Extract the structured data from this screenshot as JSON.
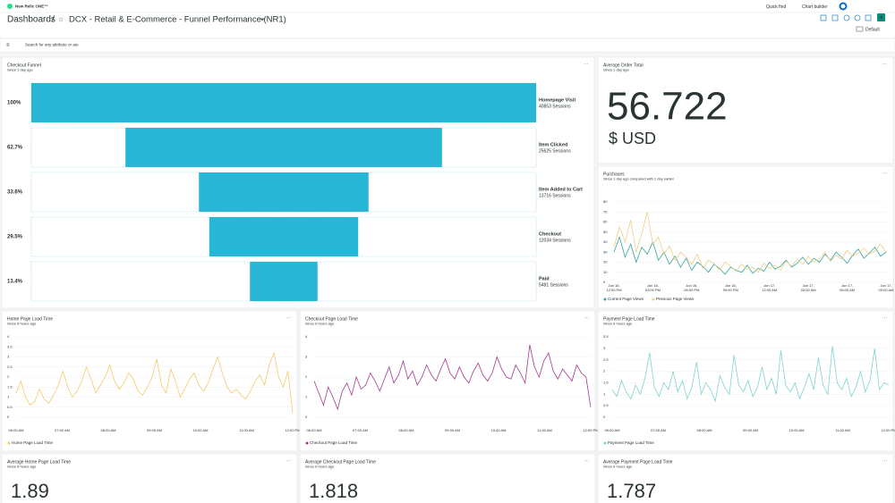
{
  "header": {
    "logo": "New Relic ONE™",
    "quick_find": "Quick find",
    "chart_builder": "Chart builder",
    "breadcrumb": "Dashboards",
    "separator": "/",
    "title": "DCX - Retail & E-Commerce - Funnel Performance (NR1)",
    "view": "Default"
  },
  "filter": {
    "placeholder": "Search for any attribute or ato"
  },
  "funnel": {
    "title": "Checkout Funnel",
    "subtitle": "Since 1 day ago",
    "color": "#27b6d6",
    "steps": [
      {
        "percent": 100,
        "percent_label": "100%",
        "name": "Homepage Visit",
        "sessions": "40853 Sessions"
      },
      {
        "percent": 62.7,
        "percent_label": "62.7%",
        "name": "Item Clicked",
        "sessions": "25625 Sessions"
      },
      {
        "percent": 33.6,
        "percent_label": "33.6%",
        "name": "Item Added to Cart",
        "sessions": "13716 Sessions"
      },
      {
        "percent": 29.5,
        "percent_label": "29.5%",
        "name": "Checkout",
        "sessions": "12034 Sessions"
      },
      {
        "percent": 13.4,
        "percent_label": "13.4%",
        "name": "Paid",
        "sessions": "5481 Sessions"
      }
    ]
  },
  "billboards": [
    {
      "title": "Average Order Total",
      "subtitle": "Since 1 day ago",
      "value": 56.722,
      "unit": "$ USD"
    },
    {
      "title": "Average Home Page Load Time",
      "subtitle": "Since 6 hours ago",
      "value": 1.89
    },
    {
      "title": "Average Checkout Page Load Time",
      "subtitle": "Since 6 hours ago",
      "value": 1.818
    },
    {
      "title": "Average Payment Page Load Time",
      "subtitle": "Since 6 hours ago",
      "value": 1.787
    }
  ],
  "chart_data": [
    {
      "type": "line",
      "title": "Purchases",
      "subtitle": "Since 1 day ago compared with 1 day earlier",
      "ylim": [
        0,
        80
      ],
      "yticks": [
        0,
        10,
        20,
        30,
        40,
        50,
        60,
        70,
        80
      ],
      "xtick_labels": [
        {
          "date": "Jun 16,",
          "time": "12:00 PM"
        },
        {
          "date": "Jun 16,",
          "time": "03:00 PM"
        },
        {
          "date": "Jun 16,",
          "time": "06:00 PM"
        },
        {
          "date": "Jun 16,",
          "time": "09:00 PM"
        },
        {
          "date": "Jun 17,",
          "time": "12:00 AM"
        },
        {
          "date": "Jun 17,",
          "time": "03:00 AM"
        },
        {
          "date": "Jun 17,",
          "time": "06:00 AM"
        },
        {
          "date": "Jun 17,",
          "time": "09:00 AM"
        }
      ],
      "series": [
        {
          "name": "Current Page Views",
          "color": "#31a4a0",
          "values": [
            30,
            45,
            25,
            38,
            20,
            35,
            28,
            40,
            22,
            30,
            18,
            26,
            15,
            24,
            12,
            20,
            16,
            10,
            18,
            14,
            8,
            15,
            12,
            10,
            17,
            9,
            14,
            11,
            20,
            13,
            16,
            22,
            15,
            19,
            25,
            18,
            24,
            20,
            28,
            22,
            30,
            25,
            19,
            27,
            33,
            24,
            29,
            35,
            26,
            30
          ]
        },
        {
          "name": "Previous Page Views",
          "color": "#f0cf86",
          "values": [
            35,
            55,
            40,
            62,
            30,
            48,
            70,
            38,
            45,
            28,
            36,
            22,
            30,
            25,
            18,
            28,
            14,
            22,
            19,
            12,
            20,
            16,
            11,
            18,
            13,
            15,
            10,
            19,
            14,
            17,
            12,
            21,
            16,
            23,
            18,
            26,
            20,
            24,
            30,
            21,
            27,
            23,
            32,
            26,
            29,
            34,
            28,
            31,
            38,
            30
          ]
        }
      ]
    },
    {
      "type": "line",
      "title": "Home Page Load Time",
      "subtitle": "Since 6 hours ago",
      "ylim": [
        0,
        4
      ],
      "yticks": [
        0,
        0.5,
        1,
        1.5,
        2,
        2.5,
        3,
        3.5,
        4
      ],
      "xtick_labels": [
        "06:00 AM",
        "07:00 AM",
        "08:00 AM",
        "09:00 AM",
        "10:00 AM",
        "11:00 AM",
        "12:00 PM"
      ],
      "series": [
        {
          "name": "Home Page Load Time",
          "color": "#f5c969",
          "values": [
            1.2,
            1.8,
            1.0,
            0.6,
            0.8,
            1.4,
            0.9,
            0.7,
            1.1,
            1.6,
            2.3,
            1.5,
            1.0,
            1.3,
            1.8,
            2.5,
            1.9,
            1.2,
            1.6,
            2.0,
            2.6,
            1.8,
            1.4,
            1.7,
            2.2,
            1.9,
            1.3,
            1.1,
            1.5,
            2.0,
            2.9,
            1.6,
            1.2,
            2.4,
            1.8,
            1.0,
            1.4,
            1.9,
            2.2,
            1.6,
            1.3,
            1.7,
            2.4,
            3.0,
            2.2,
            1.5,
            1.2,
            1.4,
            1.1,
            0.9,
            1.3,
            1.8,
            2.1,
            1.6,
            2.6,
            3.2,
            2.0,
            1.5,
            2.3,
            0.2
          ]
        }
      ]
    },
    {
      "type": "line",
      "title": "Checkout Page Load Time",
      "subtitle": "Since 6 hours ago",
      "ylim": [
        0,
        4
      ],
      "yticks": [
        0,
        1,
        2,
        3,
        4
      ],
      "xtick_labels": [
        "06:00 AM",
        "07:00 AM",
        "08:00 AM",
        "09:00 AM",
        "10:00 AM",
        "11:00 AM",
        "12:00 PM"
      ],
      "series": [
        {
          "name": "Checkout Page Load Time",
          "color": "#a2378f",
          "values": [
            1.8,
            1.2,
            0.6,
            1.5,
            1.0,
            0.4,
            1.3,
            1.7,
            1.1,
            2.0,
            1.4,
            1.6,
            2.2,
            1.8,
            1.3,
            1.9,
            2.5,
            1.7,
            2.1,
            2.8,
            1.9,
            2.3,
            1.6,
            2.0,
            2.6,
            2.1,
            1.8,
            2.4,
            2.9,
            2.2,
            1.9,
            2.5,
            2.0,
            1.7,
            2.3,
            2.7,
            2.1,
            1.8,
            2.2,
            3.0,
            2.4,
            2.0,
            1.9,
            2.6,
            2.2,
            1.7,
            3.6,
            2.5,
            2.0,
            2.8,
            3.2,
            2.3,
            1.9,
            2.4,
            2.1,
            1.8,
            2.6,
            2.2,
            2.0,
            0.5
          ]
        }
      ]
    },
    {
      "type": "line",
      "title": "Payment Page Load Time",
      "subtitle": "Since 6 hours ago",
      "ylim": [
        0,
        3.5
      ],
      "yticks": [
        0,
        0.5,
        1,
        1.5,
        2,
        2.5,
        3,
        3.5
      ],
      "xtick_labels": [
        "06:00 AM",
        "07:00 AM",
        "08:00 AM",
        "09:00 AM",
        "10:00 AM",
        "11:00 AM",
        "12:00 PM"
      ],
      "series": [
        {
          "name": "Payment Page Load Time",
          "color": "#7dd4d0",
          "values": [
            1.2,
            0.9,
            1.6,
            1.1,
            0.8,
            1.4,
            1.0,
            1.7,
            2.8,
            1.3,
            0.9,
            1.5,
            1.2,
            2.0,
            1.1,
            1.6,
            0.8,
            1.3,
            2.4,
            1.0,
            1.5,
            1.2,
            0.7,
            1.8,
            1.3,
            1.0,
            2.7,
            1.4,
            1.1,
            1.6,
            0.9,
            1.3,
            2.2,
            1.2,
            1.7,
            1.0,
            2.9,
            1.4,
            1.1,
            1.5,
            0.8,
            1.3,
            1.9,
            1.2,
            2.6,
            1.4,
            1.0,
            3.1,
            1.5,
            1.2,
            1.7,
            0.9,
            1.3,
            2.0,
            1.1,
            1.6,
            3.0,
            1.2,
            1.5,
            1.4
          ]
        }
      ]
    }
  ]
}
